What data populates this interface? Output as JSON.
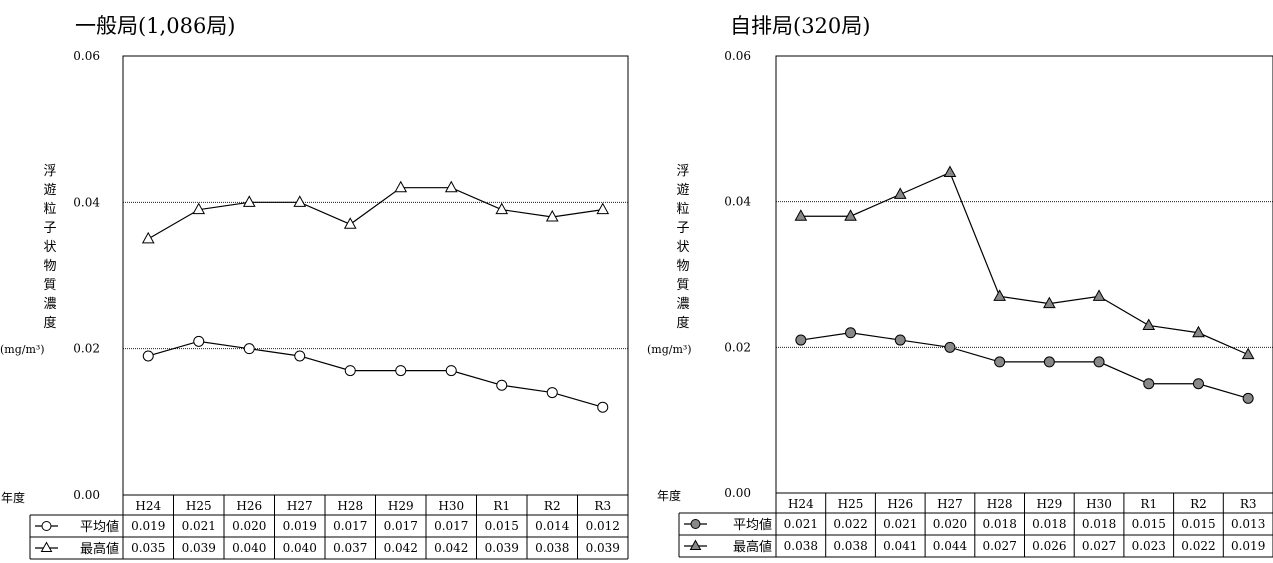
{
  "chart_data": [
    {
      "type": "line",
      "title": "一般局(1,086局)",
      "ylabel": "浮遊粒子状物質濃度",
      "yunit": "(mg/m³)",
      "xlabel": "年度",
      "ylim": [
        0,
        0.06
      ],
      "yticks": [
        "0.06",
        "0.04",
        "0.02",
        "0.00"
      ],
      "categories": [
        "H24",
        "H25",
        "H26",
        "H27",
        "H28",
        "H29",
        "H30",
        "R1",
        "R2",
        "R3"
      ],
      "series": [
        {
          "name": "平均値",
          "marker": "circle-open",
          "values": [
            0.019,
            0.021,
            0.02,
            0.019,
            0.017,
            0.017,
            0.017,
            0.015,
            0.014,
            0.012
          ],
          "labels": [
            "0.019",
            "0.021",
            "0.020",
            "0.019",
            "0.017",
            "0.017",
            "0.017",
            "0.015",
            "0.014",
            "0.012"
          ]
        },
        {
          "name": "最高値",
          "marker": "triangle-open",
          "values": [
            0.035,
            0.039,
            0.04,
            0.04,
            0.037,
            0.042,
            0.042,
            0.039,
            0.038,
            0.039
          ],
          "labels": [
            "0.035",
            "0.039",
            "0.040",
            "0.040",
            "0.037",
            "0.042",
            "0.042",
            "0.039",
            "0.038",
            "0.039"
          ]
        }
      ],
      "gridlines": [
        0.02,
        0.04
      ],
      "marker_fill": "#ffffff"
    },
    {
      "type": "line",
      "title": "自排局(320局)",
      "ylabel": "浮遊粒子状物質濃度",
      "yunit": "(mg/m³)",
      "xlabel": "年度",
      "ylim": [
        0,
        0.06
      ],
      "yticks": [
        "0.06",
        "0.04",
        "0.02",
        "0.00"
      ],
      "categories": [
        "H24",
        "H25",
        "H26",
        "H27",
        "H28",
        "H29",
        "H30",
        "R1",
        "R2",
        "R3"
      ],
      "series": [
        {
          "name": "平均値",
          "marker": "circle-filled",
          "values": [
            0.021,
            0.022,
            0.021,
            0.02,
            0.018,
            0.018,
            0.018,
            0.015,
            0.015,
            0.013
          ],
          "labels": [
            "0.021",
            "0.022",
            "0.021",
            "0.020",
            "0.018",
            "0.018",
            "0.018",
            "0.015",
            "0.015",
            "0.013"
          ]
        },
        {
          "name": "最高値",
          "marker": "triangle-filled",
          "values": [
            0.038,
            0.038,
            0.041,
            0.044,
            0.027,
            0.026,
            0.027,
            0.023,
            0.022,
            0.019
          ],
          "labels": [
            "0.038",
            "0.038",
            "0.041",
            "0.044",
            "0.027",
            "0.026",
            "0.027",
            "0.023",
            "0.022",
            "0.019"
          ]
        }
      ],
      "gridlines": [
        0.02,
        0.04
      ],
      "marker_fill": "#888888"
    }
  ]
}
